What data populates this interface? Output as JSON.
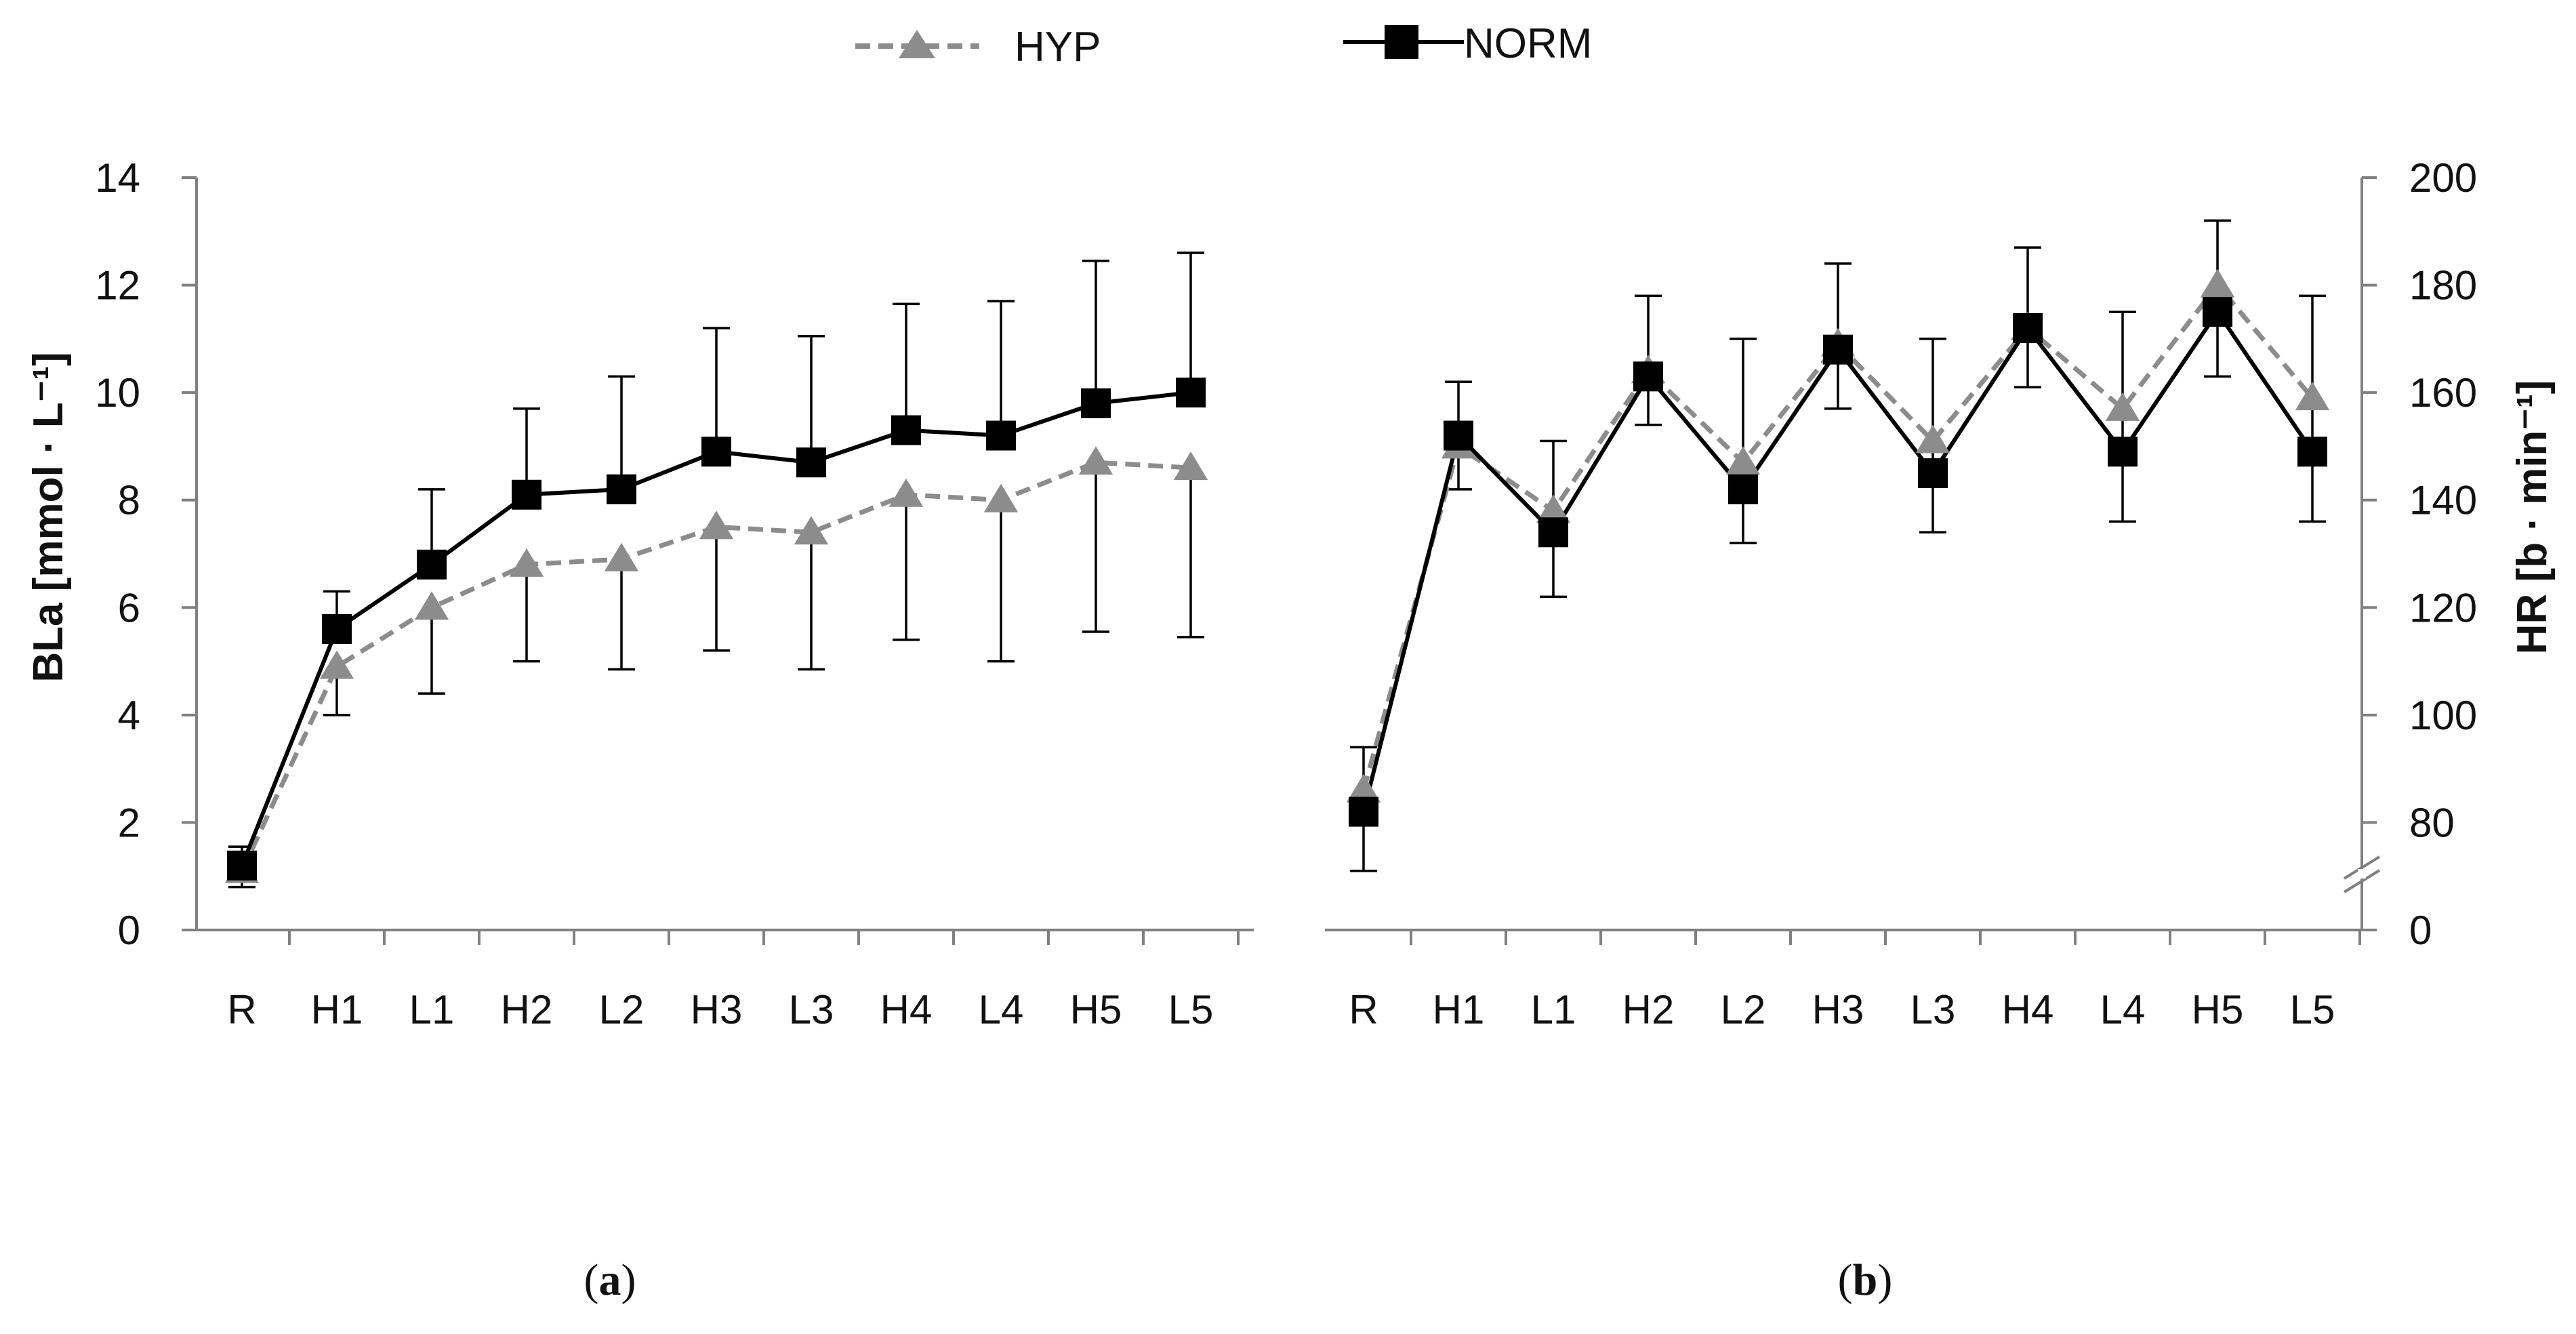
{
  "legend": {
    "hyp_label": "HYP",
    "norm_label": "NORM"
  },
  "colors": {
    "hyp": "#8c8c8c",
    "norm": "#000000",
    "axis": "#808080",
    "error_bar": "#000000"
  },
  "panels": {
    "a": {
      "open": "(",
      "letter": "a",
      "close": ")"
    },
    "b": {
      "open": "(",
      "letter": "b",
      "close": ")"
    }
  },
  "chart_data": [
    {
      "type": "line",
      "panel": "a",
      "title": "",
      "xlabel": "",
      "ylabel": "BLa [mmol · L⁻¹]",
      "categories": [
        "R",
        "H1",
        "L1",
        "H2",
        "L2",
        "H3",
        "L3",
        "H4",
        "L4",
        "H5",
        "L5"
      ],
      "ylim": [
        0,
        14
      ],
      "yticks": [
        0,
        2,
        4,
        6,
        8,
        10,
        12,
        14
      ],
      "ytick_labels": [
        "0",
        "2",
        "4",
        "6",
        "8",
        "10",
        "12",
        "14"
      ],
      "y_axis_side": "left",
      "series": [
        {
          "name": "HYP",
          "style": "dashed-triangle",
          "values": [
            1.1,
            4.9,
            6.0,
            6.8,
            6.9,
            7.5,
            7.4,
            8.1,
            8.0,
            8.7,
            8.6
          ],
          "error_low": [
            0.8,
            4.0,
            4.4,
            5.0,
            4.85,
            5.2,
            4.85,
            5.4,
            5.0,
            5.55,
            5.45
          ]
        },
        {
          "name": "NORM",
          "style": "solid-square",
          "values": [
            1.2,
            5.6,
            6.8,
            8.1,
            8.2,
            8.9,
            8.7,
            9.3,
            9.2,
            9.8,
            10.0
          ],
          "error_high": [
            1.55,
            6.3,
            8.2,
            9.7,
            10.3,
            11.2,
            11.05,
            11.65,
            11.7,
            12.45,
            12.6
          ]
        }
      ]
    },
    {
      "type": "line",
      "panel": "b",
      "title": "",
      "xlabel": "",
      "ylabel": "HR [b · min⁻¹]",
      "categories": [
        "R",
        "H1",
        "L1",
        "H2",
        "L2",
        "H3",
        "L3",
        "H4",
        "L4",
        "H5",
        "L5"
      ],
      "ylim": [
        60,
        200
      ],
      "yticks": [
        80,
        100,
        120,
        140,
        160,
        180,
        200
      ],
      "ytick_labels": [
        "80",
        "100",
        "120",
        "140",
        "160",
        "180",
        "200"
      ],
      "y_axis_origin_label": "0",
      "axis_break": true,
      "y_axis_side": "right",
      "series": [
        {
          "name": "HYP",
          "style": "dashed-triangle",
          "values": [
            86,
            150,
            138,
            164,
            147,
            169,
            151,
            172,
            157,
            180,
            159
          ]
        },
        {
          "name": "NORM",
          "style": "solid-square",
          "values": [
            82,
            152,
            134,
            163,
            142,
            168,
            145,
            172,
            149,
            175,
            149
          ],
          "error_low": [
            71,
            142,
            122,
            154,
            132,
            157,
            134,
            161,
            136,
            163,
            136
          ],
          "error_high": [
            94,
            162,
            151,
            178,
            170,
            184,
            170,
            187,
            175,
            192,
            178
          ]
        }
      ]
    }
  ]
}
